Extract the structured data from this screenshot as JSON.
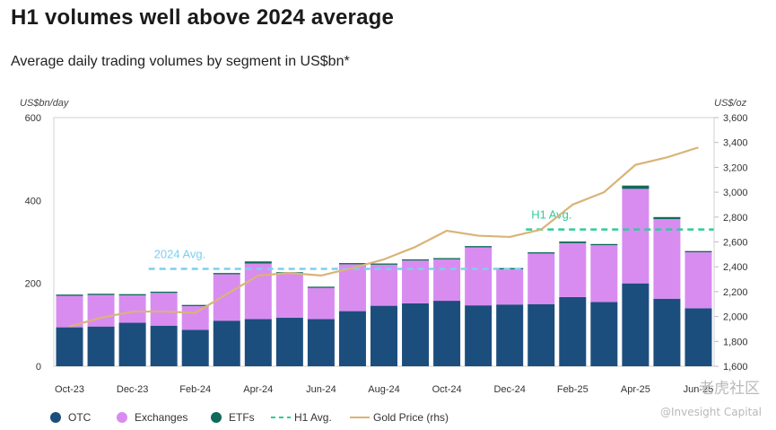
{
  "title": "H1 volumes well above 2024 average",
  "subtitle": "Average daily trading volumes by segment in US$bn*",
  "watermarks": {
    "community": "老虎社区",
    "credit": "@Invesight Capital"
  },
  "colors": {
    "otc": "#1c4e7d",
    "exchanges": "#d88cf0",
    "etfs": "#0e6b5a",
    "h1avg": "#2ecc9a",
    "avg2024": "#7ccff0",
    "gold": "#d9b478",
    "grid": "#d9d9d9"
  },
  "chart_data": {
    "type": "bar",
    "stacked": true,
    "left_axis": {
      "unit_label": "US$bn/day",
      "ylim": [
        0,
        600
      ],
      "ticks": [
        "0",
        "200",
        "400",
        "600"
      ]
    },
    "right_axis": {
      "unit_label": "US$/oz",
      "ylim": [
        1600,
        3600
      ],
      "ticks": [
        "1,600",
        "1,800",
        "2,000",
        "2,200",
        "2,400",
        "2,600",
        "2,800",
        "3,000",
        "3,200",
        "3,400",
        "3,600"
      ]
    },
    "categories": [
      "Oct-23",
      "Nov-23",
      "Dec-23",
      "Jan-24",
      "Feb-24",
      "Mar-24",
      "Apr-24",
      "May-24",
      "Jun-24",
      "Jul-24",
      "Aug-24",
      "Sep-24",
      "Oct-24",
      "Nov-24",
      "Dec-24",
      "Jan-25",
      "Feb-25",
      "Mar-25",
      "Apr-25",
      "May-25",
      "Jun-25"
    ],
    "x_tick_labels": [
      "Oct-23",
      "",
      "Dec-23",
      "",
      "Feb-24",
      "",
      "Apr-24",
      "",
      "Jun-24",
      "",
      "Aug-24",
      "",
      "Oct-24",
      "",
      "Dec-24",
      "",
      "Feb-25",
      "",
      "Apr-25",
      "",
      "Jun-25"
    ],
    "series": [
      {
        "name": "OTC",
        "values": [
          94,
          96,
          105,
          98,
          88,
          110,
          114,
          117,
          114,
          133,
          146,
          152,
          158,
          147,
          149,
          150,
          167,
          155,
          200,
          163,
          140
        ]
      },
      {
        "name": "Exchanges",
        "values": [
          76,
          76,
          66,
          79,
          57,
          112,
          134,
          107,
          75,
          113,
          99,
          103,
          100,
          140,
          85,
          122,
          130,
          137,
          228,
          192,
          135
        ]
      },
      {
        "name": "ETFs",
        "values": [
          3,
          3,
          3,
          3,
          3,
          3,
          5,
          3,
          3,
          3,
          3,
          3,
          3,
          3,
          3,
          3,
          4,
          3,
          8,
          5,
          3
        ]
      }
    ],
    "gold_price": {
      "name": "Gold Price (rhs)",
      "values": [
        1920,
        1990,
        2040,
        2040,
        2030,
        2180,
        2330,
        2350,
        2330,
        2390,
        2460,
        2560,
        2690,
        2650,
        2640,
        2700,
        2900,
        3000,
        3220,
        3280,
        3360
      ]
    },
    "reference_lines": [
      {
        "name": "2024 Avg.",
        "value": 235,
        "from": "Jan-24",
        "to": "Dec-24"
      },
      {
        "name": "H1 Avg.",
        "value": 330,
        "from": "Jan-25",
        "to": "Jun-25"
      }
    ],
    "legend": {
      "placement": "bottom",
      "entries": [
        "OTC",
        "Exchanges",
        "ETFs",
        "H1 Avg.",
        "Gold Price (rhs)"
      ]
    },
    "grid": false
  }
}
